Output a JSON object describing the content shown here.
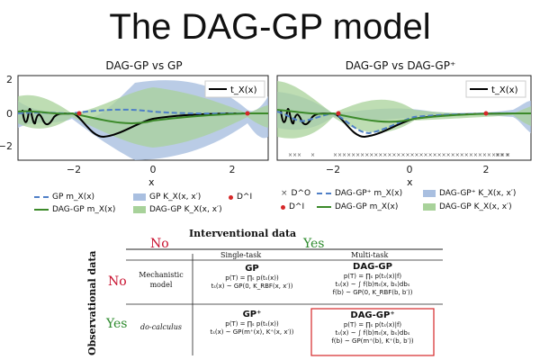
{
  "slide_title": "The DAG-GP model",
  "left_plot": {
    "title": "DAG-GP vs GP",
    "xlabel": "x",
    "yticks": [
      "2",
      "0",
      "−2"
    ],
    "xticks": [
      "−2",
      "0",
      "2"
    ],
    "inset_legend": "t_X(x)",
    "legend": [
      "GP m_X(x)",
      "DAG-GP m_X(x)",
      "GP K_X(x, x′)",
      "DAG-GP K_X(x, x′)",
      "D^I"
    ]
  },
  "right_plot": {
    "title": "DAG-GP vs DAG-GP⁺",
    "xlabel": "x",
    "xticks": [
      "−2",
      "0",
      "2"
    ],
    "inset_legend": "t_X(x)",
    "legend": [
      "D^O",
      "D^I",
      "DAG-GP⁺ m_X(x)",
      "DAG-GP m_X(x)",
      "DAG-GP⁺ K_X(x, x′)",
      "DAG-GP K_X(x, x′)"
    ]
  },
  "table": {
    "interventional": "Interventional data",
    "observational": "Observational data",
    "no": "No",
    "yes": "Yes",
    "single_task": "Single-task",
    "multi_task": "Multi-task",
    "row1_label": "Mechanistic model",
    "row2_label": "do-calculus",
    "gp": {
      "name": "GP",
      "l1": "p(T) = ∏ₛ p(tₛ(x))",
      "l2": "tₛ(x) ~ GP(0, K_RBF(x, x′))"
    },
    "daggp": {
      "name": "DAG-GP",
      "l1": "p(T) = ∏ₛ p(tₛ(x)|f)",
      "l2": "tₛ(x) ~ ∫ f(b)πₛ(x, bₛ)dbₛ",
      "l3": "f(b) ~ GP(0, K_RBF(b, b′))"
    },
    "gpplus": {
      "name": "GP⁺",
      "l1": "p(T) = ∏ₛ p(tₛ(x))",
      "l2": "tₛ(x) ~ GP(m⁺(x), K⁺(x, x′))"
    },
    "daggpplus": {
      "name": "DAG-GP⁺",
      "l1": "p(T) = ∏ₛ p(tₛ(x)|f)",
      "l2": "tₛ(x) ~ ∫ f(b)πₛ(x, bₛ)dbₛ",
      "l3": "f(b) ~ GP(m⁺(b), K⁺(b, b′))"
    }
  },
  "colors": {
    "gp_blue": "#4f7fc7",
    "gp_band": "#a9bfe0",
    "dag_green": "#3c8a2a",
    "dag_band": "#a8d29a",
    "red": "#d62728",
    "no_red": "#c8102e",
    "yes_green": "#2e8b2e"
  }
}
